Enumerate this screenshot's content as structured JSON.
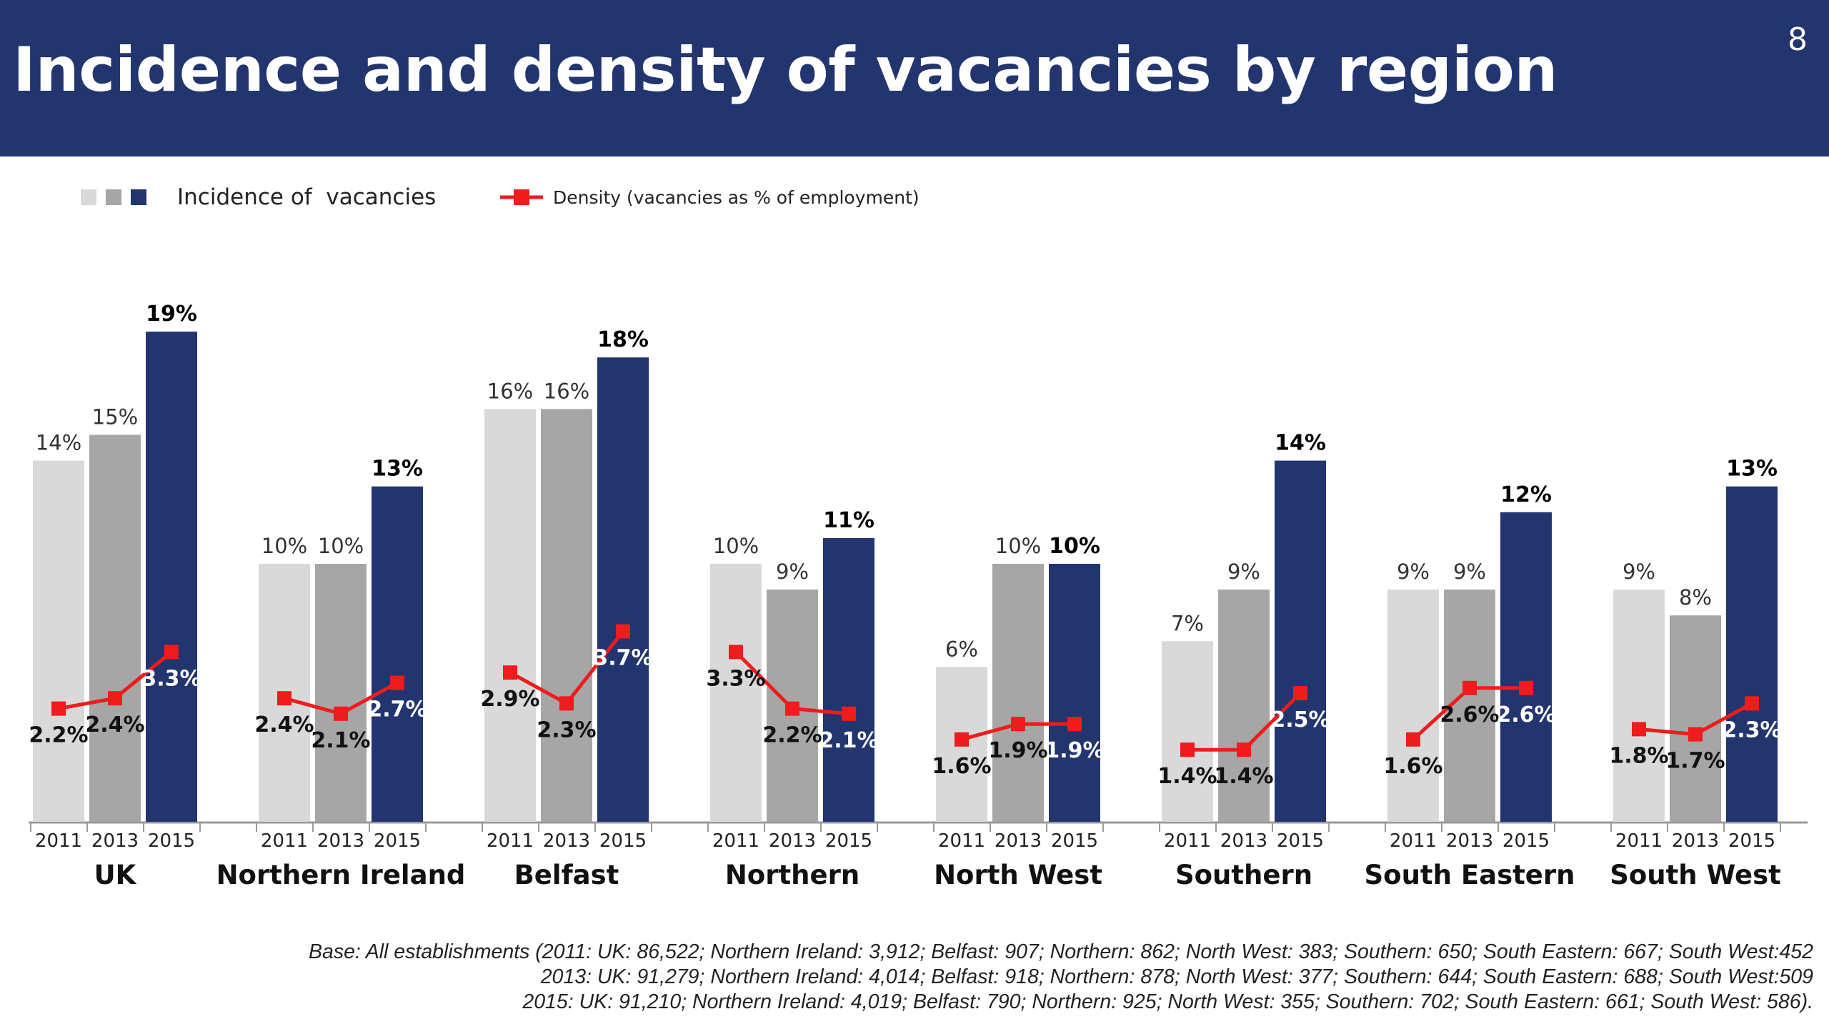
{
  "page": {
    "title": "Incidence and density of vacancies by region",
    "page_number": "8"
  },
  "colors": {
    "header_bg": "#22356f",
    "bar_2011": "#d9d9d9",
    "bar_2013": "#a6a6a6",
    "bar_2015": "#22356f",
    "density_line": "#ee1c1c"
  },
  "legend": {
    "incidence_label": "Incidence of  vacancies",
    "density_label": "Density (vacancies as % of employment)"
  },
  "chart_data": {
    "type": "bar",
    "title": "Incidence and density of vacancies by region",
    "legend_position": "top-left",
    "grid": false,
    "ylim": [
      0,
      20
    ],
    "years": [
      "2011",
      "2013",
      "2015"
    ],
    "regions": [
      {
        "name": "UK",
        "incidence": [
          14,
          15,
          19
        ],
        "incidence_labels": [
          "14%",
          "15%",
          "19%"
        ],
        "density": [
          2.2,
          2.4,
          3.3
        ],
        "density_labels": [
          "2.2%",
          "2.4%",
          "3.3%"
        ]
      },
      {
        "name": "Northern Ireland",
        "incidence": [
          10,
          10,
          13
        ],
        "incidence_labels": [
          "10%",
          "10%",
          "13%"
        ],
        "density": [
          2.4,
          2.1,
          2.7
        ],
        "density_labels": [
          "2.4%",
          "2.1%",
          "2.7%"
        ]
      },
      {
        "name": "Belfast",
        "incidence": [
          16,
          16,
          18
        ],
        "incidence_labels": [
          "16%",
          "16%",
          "18%"
        ],
        "density": [
          2.9,
          2.3,
          3.7
        ],
        "density_labels": [
          "2.9%",
          "2.3%",
          "3.7%"
        ]
      },
      {
        "name": "Northern",
        "incidence": [
          10,
          9,
          11
        ],
        "incidence_labels": [
          "10%",
          "9%",
          "11%"
        ],
        "density": [
          3.3,
          2.2,
          2.1
        ],
        "density_labels": [
          "3.3%",
          "2.2%",
          "2.1%"
        ]
      },
      {
        "name": "North West",
        "incidence": [
          6,
          10,
          10
        ],
        "incidence_labels": [
          "6%",
          "10%",
          "10%"
        ],
        "density": [
          1.6,
          1.9,
          1.9
        ],
        "density_labels": [
          "1.6%",
          "1.9%",
          "1.9%"
        ]
      },
      {
        "name": "Southern",
        "incidence": [
          7,
          9,
          14
        ],
        "incidence_labels": [
          "7%",
          "9%",
          "14%"
        ],
        "density": [
          1.4,
          1.4,
          2.5
        ],
        "density_labels": [
          "1.4%",
          "1.4%",
          "2.5%"
        ]
      },
      {
        "name": "South Eastern",
        "incidence": [
          9,
          9,
          12
        ],
        "incidence_labels": [
          "9%",
          "9%",
          "12%"
        ],
        "density": [
          1.6,
          2.6,
          2.6
        ],
        "density_labels": [
          "1.6%",
          "2.6%",
          "2.6%"
        ]
      },
      {
        "name": "South West",
        "incidence": [
          9,
          8,
          13
        ],
        "incidence_labels": [
          "9%",
          "8%",
          "13%"
        ],
        "density": [
          1.8,
          1.7,
          2.3
        ],
        "density_labels": [
          "1.8%",
          "1.7%",
          "2.3%"
        ]
      }
    ]
  },
  "footnote": {
    "line1": "Base: All establishments (2011: UK: 86,522; Northern Ireland: 3,912; Belfast: 907; Northern: 862; North West: 383; Southern: 650; South Eastern: 667; South West:452",
    "line2": "2013: UK: 91,279; Northern Ireland: 4,014; Belfast: 918; Northern: 878; North West: 377; Southern: 644; South Eastern: 688; South West:509",
    "line3": "2015: UK: 91,210;  Northern Ireland: 4,019; Belfast: 790; Northern: 925; North West: 355; Southern: 702; South Eastern: 661; South West: 586)."
  }
}
